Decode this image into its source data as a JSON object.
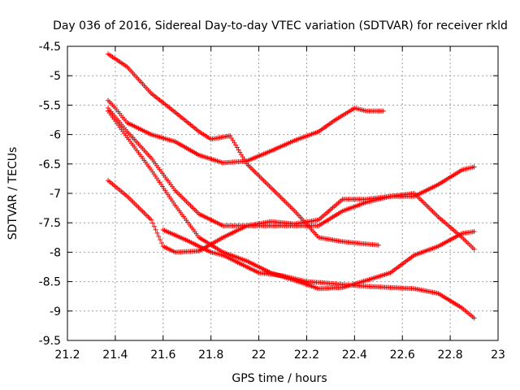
{
  "chart_data": {
    "type": "scatter",
    "title": "Day 036 of 2016, Sidereal Day-to-day VTEC variation (SDTVAR) for receiver rkld",
    "xlabel": "GPS time / hours",
    "ylabel": "SDTVAR / TECUs",
    "xlim": [
      21.2,
      23.0
    ],
    "ylim": [
      -9.5,
      -4.5
    ],
    "xticks": [
      21.2,
      21.4,
      21.6,
      21.8,
      22.0,
      22.2,
      22.4,
      22.6,
      22.8,
      23.0
    ],
    "xtick_labels": [
      "21.2",
      "21.4",
      "21.6",
      "21.8",
      "22",
      "22.2",
      "22.4",
      "22.6",
      "22.8",
      "23"
    ],
    "yticks": [
      -4.5,
      -5,
      -5.5,
      -6,
      -6.5,
      -7,
      -7.5,
      -8,
      -8.5,
      -9,
      -9.5
    ],
    "ytick_labels": [
      "-4.5",
      "-5",
      "-5.5",
      "-6",
      "-6.5",
      "-7",
      "-7.5",
      "-8",
      "-8.5",
      "-9",
      "-9.5"
    ],
    "grid": true,
    "marker": "+",
    "color": "#ff0000",
    "series": [
      {
        "x": [
          21.37,
          21.45,
          21.55,
          21.65,
          21.75,
          21.8,
          21.88,
          21.95,
          22.05,
          22.15,
          22.25,
          22.35,
          22.42,
          22.5
        ],
        "y": [
          -4.63,
          -4.85,
          -5.3,
          -5.62,
          -5.95,
          -6.08,
          -6.02,
          -6.5,
          -6.9,
          -7.3,
          -7.75,
          -7.82,
          -7.85,
          -7.88
        ]
      },
      {
        "x": [
          21.37,
          21.4,
          21.45,
          21.55,
          21.65,
          21.75,
          21.85,
          21.95,
          22.05,
          22.15,
          22.25,
          22.32,
          22.4,
          22.45,
          22.52
        ],
        "y": [
          -5.42,
          -5.55,
          -5.8,
          -6.0,
          -6.12,
          -6.35,
          -6.48,
          -6.45,
          -6.28,
          -6.1,
          -5.95,
          -5.75,
          -5.55,
          -5.6,
          -5.6
        ]
      },
      {
        "x": [
          21.37,
          21.45,
          21.55,
          21.65,
          21.75,
          21.85,
          21.95,
          22.05,
          22.15,
          22.25,
          22.35,
          22.45,
          22.55,
          22.65,
          22.75,
          22.85,
          22.9
        ],
        "y": [
          -5.55,
          -5.95,
          -6.4,
          -6.95,
          -7.35,
          -7.55,
          -7.55,
          -7.55,
          -7.55,
          -7.55,
          -7.3,
          -7.15,
          -7.05,
          -7.0,
          -7.4,
          -7.75,
          -7.95
        ]
      },
      {
        "x": [
          21.37,
          21.45,
          21.55,
          21.65,
          21.75,
          21.85,
          21.95,
          22.05,
          22.15,
          22.25,
          22.35,
          22.45,
          22.55,
          22.65,
          22.75,
          22.85,
          22.9
        ],
        "y": [
          -5.6,
          -6.05,
          -6.6,
          -7.2,
          -7.75,
          -8.0,
          -8.15,
          -8.35,
          -8.48,
          -8.62,
          -8.6,
          -8.48,
          -8.35,
          -8.05,
          -7.9,
          -7.68,
          -7.65
        ]
      },
      {
        "x": [
          21.37,
          21.45,
          21.55,
          21.6,
          21.65,
          21.75,
          21.85,
          21.95,
          22.05,
          22.15,
          22.25,
          22.35,
          22.45,
          22.55,
          22.65,
          22.75,
          22.85,
          22.9
        ],
        "y": [
          -6.78,
          -7.05,
          -7.45,
          -7.9,
          -8.0,
          -7.98,
          -7.75,
          -7.55,
          -7.48,
          -7.52,
          -7.45,
          -7.1,
          -7.1,
          -7.05,
          -7.05,
          -6.85,
          -6.6,
          -6.55
        ]
      },
      {
        "x": [
          21.6,
          21.7,
          21.8,
          21.85,
          21.9,
          22.0,
          22.1,
          22.2,
          22.27,
          22.35,
          22.45,
          22.55,
          22.65,
          22.75,
          22.85,
          22.9
        ],
        "y": [
          -7.62,
          -7.8,
          -8.0,
          -8.05,
          -8.15,
          -8.35,
          -8.4,
          -8.5,
          -8.52,
          -8.55,
          -8.58,
          -8.6,
          -8.62,
          -8.7,
          -8.95,
          -9.12
        ]
      }
    ]
  }
}
